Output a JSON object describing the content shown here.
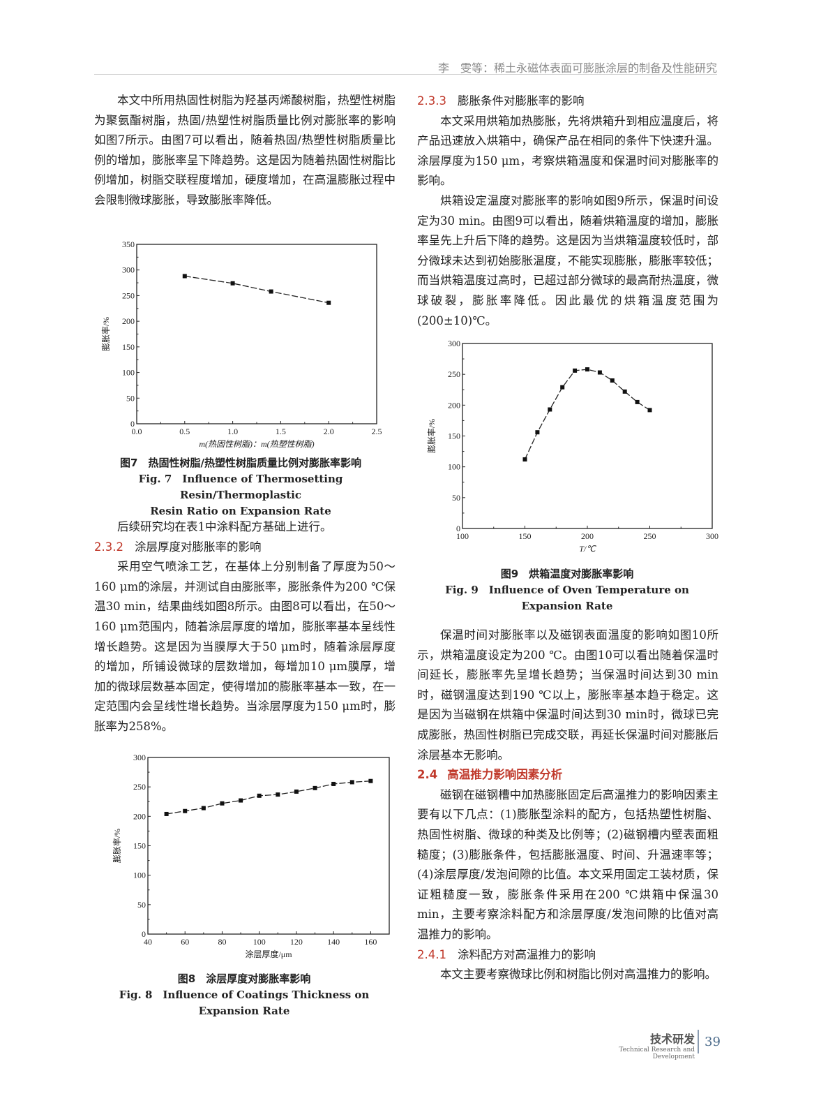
{
  "header": {
    "running_title": "李　雯等：稀土永磁体表面可膨胀涂层的制备及性能研究"
  },
  "left": {
    "para1": "本文中所用热固性树脂为羟基丙烯酸树脂，热塑性树脂为聚氨酯树脂，热固/热塑性树脂质量比例对膨胀率的影响如图7所示。由图7可以看出，随着热固/热塑性树脂质量比例的增加，膨胀率呈下降趋势。这是因为随着热固性树脂比例增加，树脂交联程度增加，硬度增加，在高温膨胀过程中会限制微球膨胀，导致膨胀率降低。",
    "para2": "后续研究均在表1中涂料配方基础上进行。",
    "sec232_num": "2.3.2",
    "sec232_title": "涂层厚度对膨胀率的影响",
    "para3": "采用空气喷涂工艺，在基体上分别制备了厚度为50～160 μm的涂层，并测试自由膨胀率，膨胀条件为200 ℃保温30 min，结果曲线如图8所示。由图8可以看出，在50～160 μm范围内，随着涂层厚度的增加，膨胀率基本呈线性增长趋势。这是因为当膜厚大于50 μm时，随着涂层厚度的增加，所铺设微球的层数增加，每增加10 μm膜厚，增加的微球层数基本固定，使得增加的膨胀率基本一致，在一定范围内会呈线性增长趋势。当涂层厚度为150 μm时，膨胀率为258%。"
  },
  "right": {
    "sec233_num": "2.3.3",
    "sec233_title": "膨胀条件对膨胀率的影响",
    "para1": "本文采用烘箱加热膨胀，先将烘箱升到相应温度后，将产品迅速放入烘箱中，确保产品在相同的条件下快速升温。涂层厚度为150 μm，考察烘箱温度和保温时间对膨胀率的影响。",
    "para2": "烘箱设定温度对膨胀率的影响如图9所示，保温时间设定为30 min。由图9可以看出，随着烘箱温度的增加，膨胀率呈先上升后下降的趋势。这是因为当烘箱温度较低时，部分微球未达到初始膨胀温度，不能实现膨胀，膨胀率较低；而当烘箱温度过高时，已超过部分微球的最高耐热温度，微球破裂，膨胀率降低。因此最优的烘箱温度范围为(200±10)℃。",
    "para3": "保温时间对膨胀率以及磁钢表面温度的影响如图10所示，烘箱温度设定为200 ℃。由图10可以看出随着保温时间延长，膨胀率先呈增长趋势；当保温时间达到30 min时，磁钢温度达到190 ℃以上，膨胀率基本趋于稳定。这是因为当磁钢在烘箱中保温时间达到30 min时，微球已完成膨胀，热固性树脂已完成交联，再延长保温时间对膨胀后涂层基本无影响。",
    "sec24_num": "2.4",
    "sec24_title": "高温推力影响因素分析",
    "para4": "磁钢在磁钢槽中加热膨胀固定后高温推力的影响因素主要有以下几点：(1)膨胀型涂料的配方，包括热塑性树脂、热固性树脂、微球的种类及比例等；(2)磁钢槽内壁表面粗糙度；(3)膨胀条件，包括膨胀温度、时间、升温速率等；(4)涂层厚度/发泡间隙的比值。本文采用固定工装材质，保证粗糙度一致，膨胀条件采用在200 ℃烘箱中保温30 min，主要考察涂料配方和涂层厚度/发泡间隙的比值对高温推力的影响。",
    "sec241_num": "2.4.1",
    "sec241_title": "涂料配方对高温推力的影响",
    "para5": "本文主要考察微球比例和树脂比例对高温推力的影响。"
  },
  "figures": {
    "fig7": {
      "zh": "图7　热固性树脂/热塑性树脂质量比例对膨胀率影响",
      "en1": "Fig. 7　Influence of Thermosetting Resin/Thermoplastic",
      "en2": "Resin Ratio on Expansion Rate"
    },
    "fig8": {
      "zh": "图8　涂层厚度对膨胀率影响",
      "en": "Fig. 8　Influence of Coatings Thickness on Expansion Rate"
    },
    "fig9": {
      "zh": "图9　烘箱温度对膨胀率影响",
      "en": "Fig. 9　Influence of Oven Temperature on Expansion Rate"
    }
  },
  "footer": {
    "section_zh": "技术研发",
    "section_en": "Technical Research and Development",
    "page_number": "39"
  },
  "chart_data": [
    {
      "id": "fig7",
      "type": "line",
      "xlabel": "m(热固性树脂)：m(热塑性树脂)",
      "ylabel": "膨胀率/%",
      "xlim": [
        0,
        2.5
      ],
      "ylim": [
        0,
        350
      ],
      "xticks": [
        "0.0",
        "0.5",
        "1.0",
        "1.5",
        "2.0",
        "2.5"
      ],
      "yticks": [
        "0",
        "50",
        "100",
        "150",
        "200",
        "250",
        "300",
        "350"
      ],
      "x": [
        0.5,
        1.0,
        1.4,
        2.0
      ],
      "y": [
        288,
        274,
        258,
        236
      ],
      "grid": false,
      "marker": "square"
    },
    {
      "id": "fig8",
      "type": "line",
      "xlabel": "涂层厚度/μm",
      "ylabel": "膨胀率/%",
      "xlim": [
        40,
        170
      ],
      "ylim": [
        0,
        300
      ],
      "xticks": [
        "40",
        "60",
        "80",
        "100",
        "120",
        "140",
        "160"
      ],
      "yticks": [
        "0",
        "50",
        "100",
        "150",
        "200",
        "250",
        "300"
      ],
      "x": [
        50,
        60,
        70,
        80,
        90,
        100,
        110,
        120,
        130,
        140,
        150,
        160
      ],
      "y": [
        204,
        209,
        214,
        222,
        227,
        235,
        237,
        242,
        248,
        255,
        258,
        260
      ],
      "grid": false,
      "marker": "square"
    },
    {
      "id": "fig9",
      "type": "line",
      "xlabel": "T/℃",
      "ylabel": "膨胀率/%",
      "xlim": [
        100,
        300
      ],
      "ylim": [
        0,
        300
      ],
      "xticks": [
        "100",
        "150",
        "200",
        "250",
        "300"
      ],
      "yticks": [
        "0",
        "50",
        "100",
        "150",
        "200",
        "250",
        "300"
      ],
      "x": [
        150,
        160,
        170,
        180,
        190,
        200,
        210,
        220,
        230,
        240,
        250
      ],
      "y": [
        112,
        156,
        193,
        229,
        256,
        258,
        253,
        240,
        222,
        205,
        192
      ],
      "grid": false,
      "marker": "square"
    }
  ]
}
